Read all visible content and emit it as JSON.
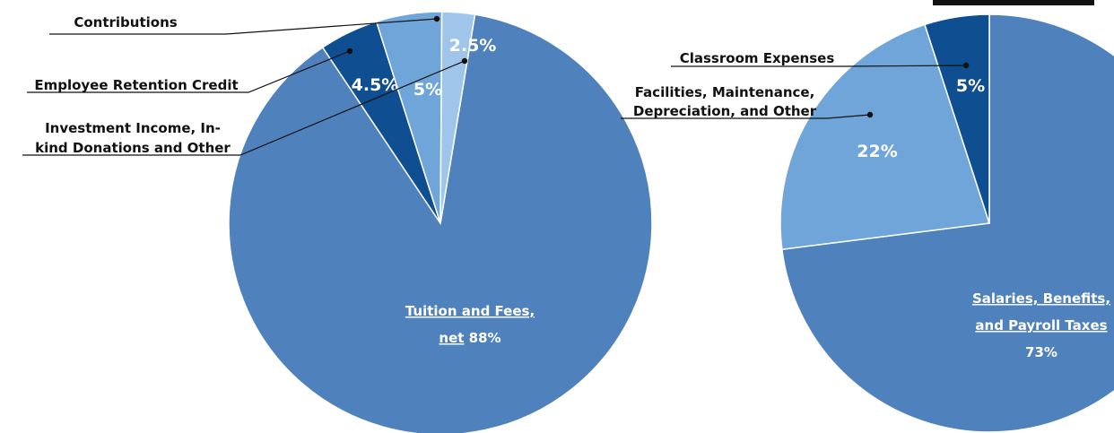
{
  "chart_data": [
    {
      "type": "pie",
      "title": "",
      "colors": [
        "#4f81bd",
        "#0f4e91",
        "#6fa5d8",
        "#9fc6ea"
      ],
      "slices": [
        {
          "label": "Tuition and Fees, net",
          "label_lines": [
            "Tuition and Fees,",
            "net"
          ],
          "value": 88,
          "value_label": "88%"
        },
        {
          "label": "Employee Retention Credit",
          "label_lines": [
            "Employee Retention Credit"
          ],
          "value": 4.5,
          "value_label": "4.5%"
        },
        {
          "label": "Contributions",
          "label_lines": [
            "Contributions"
          ],
          "value": 5,
          "value_label": "5%"
        },
        {
          "label": "Investment Income, In-kind Donations and Other",
          "label_lines": [
            "Investment Income, In-",
            "kind Donations and Other"
          ],
          "value": 2.5,
          "value_label": "2.5%"
        }
      ]
    },
    {
      "type": "pie",
      "title": "",
      "colors": [
        "#4f81bd",
        "#6fa5d8",
        "#0f4e91"
      ],
      "slices": [
        {
          "label": "Salaries, Benefits, and Payroll Taxes",
          "label_lines": [
            "Salaries, Benefits,",
            "and Payroll Taxes"
          ],
          "value": 73,
          "value_label": "73%"
        },
        {
          "label": "Facilities, Maintenance, Depreciation, and Other",
          "label_lines": [
            "Facilities, Maintenance,",
            "Depreciation, and Other"
          ],
          "value": 22,
          "value_label": "22%"
        },
        {
          "label": "Classroom Expenses",
          "label_lines": [
            "Classroom Expenses"
          ],
          "value": 5,
          "value_label": "5%"
        }
      ]
    }
  ]
}
